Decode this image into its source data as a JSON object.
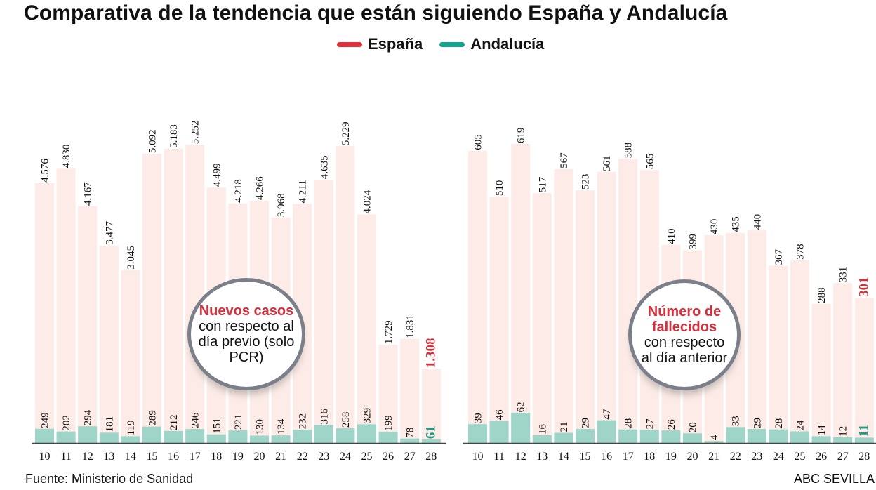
{
  "title": "Comparativa de la tendencia que están siguiendo España y Andalucía",
  "legend": [
    {
      "name": "España",
      "color": "#e0313c"
    },
    {
      "name": "Andalucía",
      "color": "#14a58e"
    }
  ],
  "colors": {
    "espana_bar": "#fcebe6",
    "andalucia_bar": "#9fd5c9",
    "highlight_espana": "#d62f3b",
    "highlight_andalucia": "#1f9a86",
    "axis": "#444444"
  },
  "bubbles": {
    "cases": {
      "highlight": "Nuevos casos",
      "text": "con respecto al día previo (solo PCR)"
    },
    "deaths": {
      "highlight": "Número de fallecidos",
      "text": "con respecto al día anterior"
    }
  },
  "footer": {
    "source": "Fuente: Ministerio de Sanidad",
    "brand": "ABC SEVILLA"
  },
  "chart_data": [
    {
      "type": "bar",
      "categories": [
        "10",
        "11",
        "12",
        "13",
        "14",
        "15",
        "16",
        "17",
        "18",
        "19",
        "20",
        "21",
        "22",
        "23",
        "24",
        "25",
        "26",
        "27",
        "28"
      ],
      "series": [
        {
          "name": "España",
          "values": [
            4576,
            4830,
            4167,
            3477,
            3045,
            5092,
            5183,
            5252,
            4499,
            4218,
            4266,
            3968,
            4211,
            4635,
            5229,
            4024,
            1729,
            1831,
            1308
          ],
          "labels": [
            "4.576",
            "4.830",
            "4.167",
            "3.477",
            "3.045",
            "5.092",
            "5.183",
            "5.252",
            "4.499",
            "4.218",
            "4.266",
            "3.968",
            "4.211",
            "4.635",
            "5.229",
            "4.024",
            "1.729",
            "1.831",
            "1.308"
          ]
        },
        {
          "name": "Andalucía",
          "values": [
            249,
            202,
            294,
            181,
            119,
            289,
            212,
            246,
            151,
            221,
            130,
            134,
            232,
            316,
            258,
            329,
            199,
            78,
            61
          ],
          "labels": [
            "249",
            "202",
            "294",
            "181",
            "119",
            "289",
            "212",
            "246",
            "151",
            "221",
            "130",
            "134",
            "232",
            "316",
            "258",
            "329",
            "199",
            "78",
            "61"
          ]
        }
      ],
      "ylim": [
        0,
        5700
      ],
      "grid": false
    },
    {
      "type": "bar",
      "categories": [
        "10",
        "11",
        "12",
        "13",
        "14",
        "15",
        "16",
        "17",
        "18",
        "19",
        "20",
        "21",
        "22",
        "23",
        "24",
        "25",
        "26",
        "27",
        "28"
      ],
      "series": [
        {
          "name": "España",
          "values": [
            605,
            510,
            619,
            517,
            567,
            523,
            561,
            588,
            565,
            410,
            399,
            430,
            435,
            440,
            367,
            378,
            288,
            331,
            301
          ],
          "labels": [
            "605",
            "510",
            "619",
            "517",
            "567",
            "523",
            "561",
            "588",
            "565",
            "410",
            "399",
            "430",
            "435",
            "440",
            "367",
            "378",
            "288",
            "331",
            "301"
          ]
        },
        {
          "name": "Andalucía",
          "values": [
            39,
            46,
            62,
            16,
            21,
            29,
            47,
            28,
            27,
            26,
            20,
            4,
            33,
            29,
            28,
            24,
            14,
            12,
            11
          ],
          "labels": [
            "39",
            "46",
            "62",
            "16",
            "21",
            "29",
            "47",
            "28",
            "27",
            "26",
            "20",
            "4",
            "33",
            "29",
            "28",
            "24",
            "14",
            "12",
            "11"
          ]
        }
      ],
      "ylim": [
        0,
        670
      ],
      "grid": false
    }
  ]
}
